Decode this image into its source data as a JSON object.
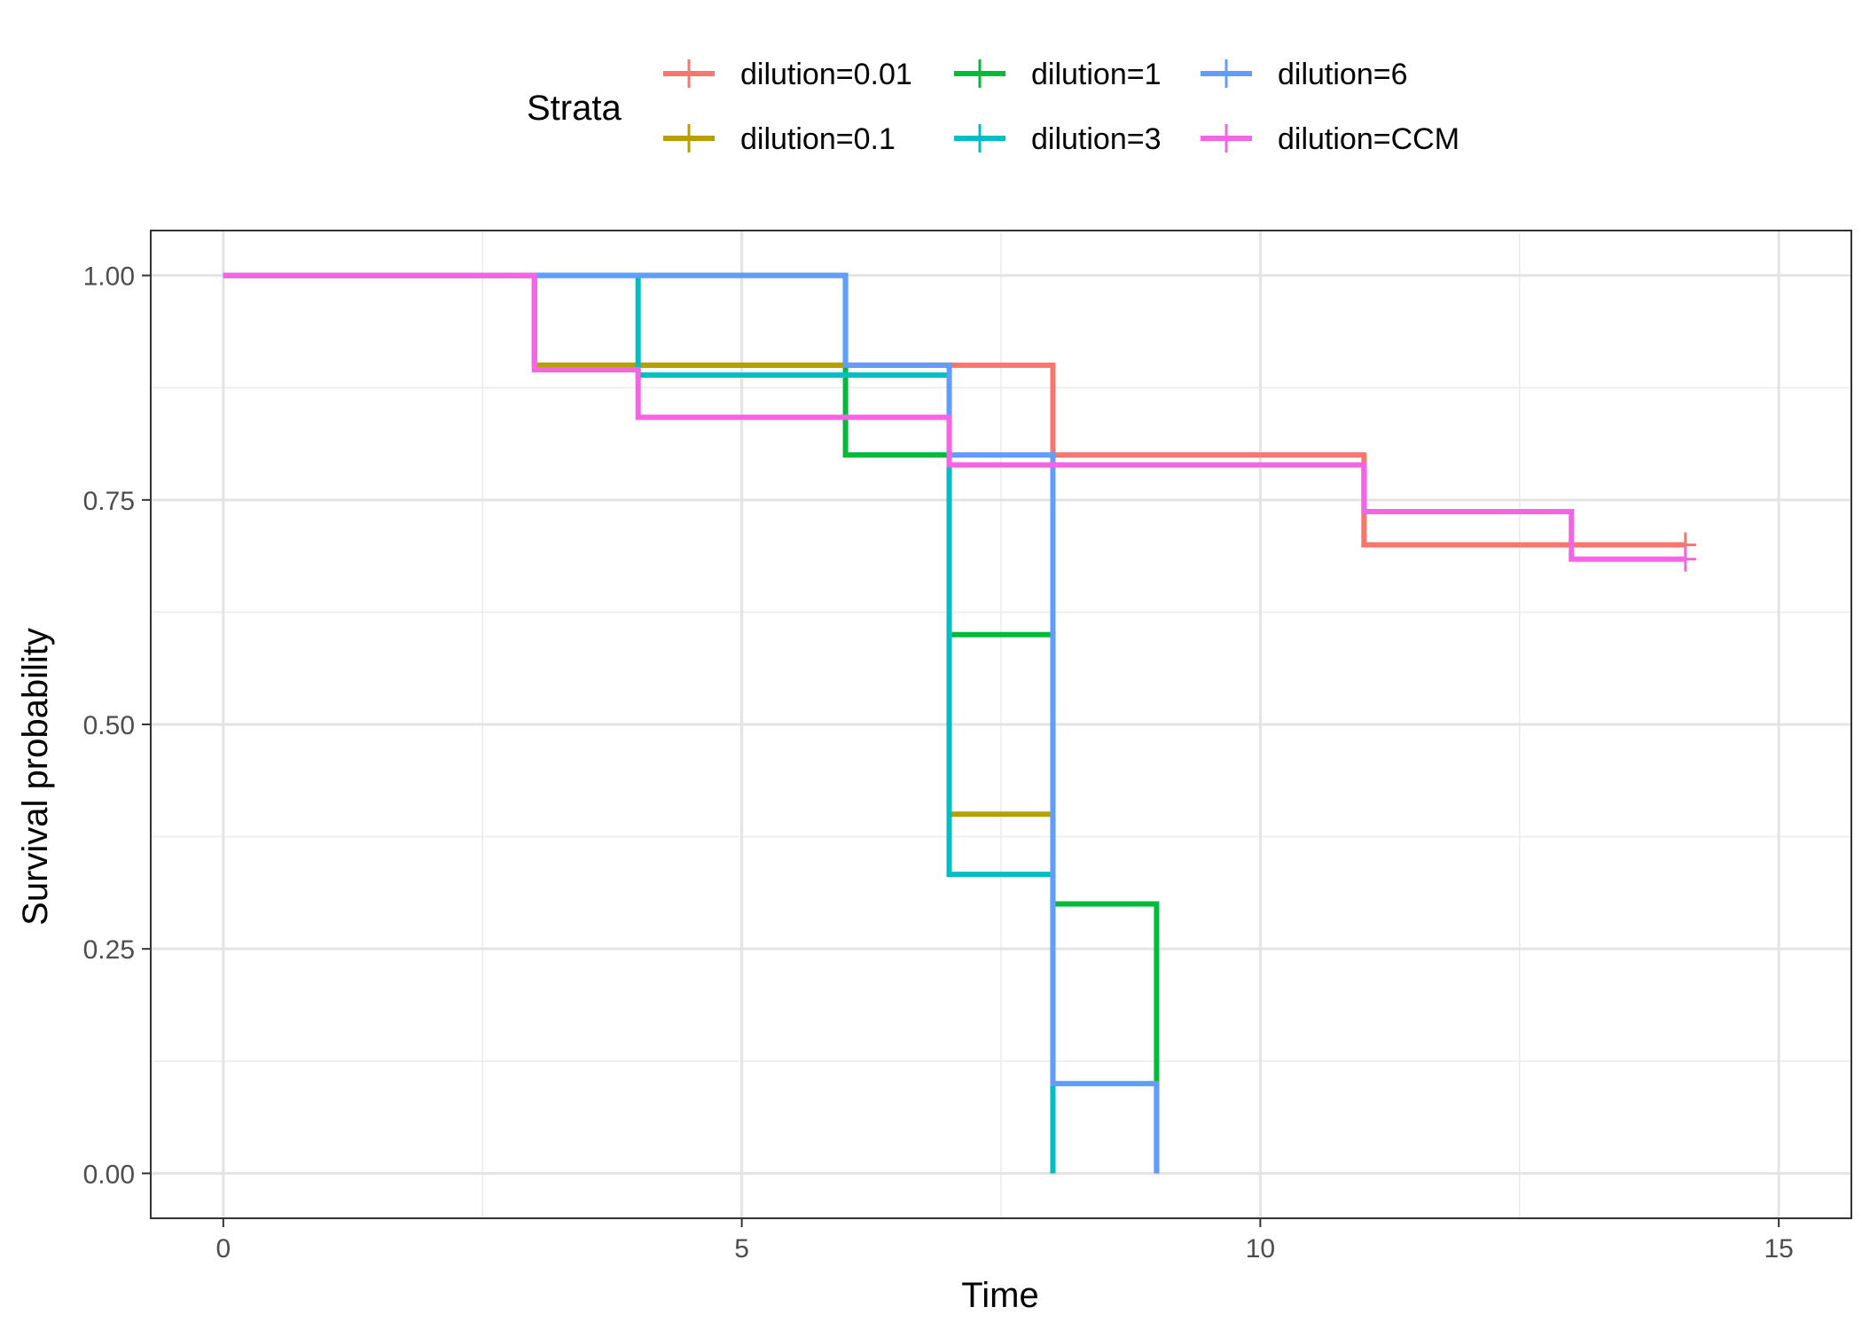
{
  "chart_data": {
    "type": "line",
    "subtype": "kaplan-meier step",
    "xlabel": "Time",
    "ylabel": "Survival probability",
    "xlim": [
      -0.7,
      15.7
    ],
    "ylim": [
      -0.05,
      1.05
    ],
    "x_ticks": [
      0,
      5,
      10,
      15
    ],
    "x_tick_labels": [
      "0",
      "5",
      "10",
      "15"
    ],
    "y_ticks": [
      0,
      0.25,
      0.5,
      0.75,
      1.0
    ],
    "y_tick_labels": [
      "0.00",
      "0.25",
      "0.50",
      "0.75",
      "1.00"
    ],
    "grid": true,
    "legend": {
      "title": "Strata",
      "placement": "top",
      "entries": [
        "dilution=0.01",
        "dilution=0.1",
        "dilution=1",
        "dilution=3",
        "dilution=6",
        "dilution=CCM"
      ]
    },
    "series": [
      {
        "name": "dilution=0.01",
        "color": "#F8766D",
        "steps": [
          [
            0,
            1.0
          ],
          [
            3,
            0.9
          ],
          [
            8,
            0.8
          ],
          [
            11,
            0.7
          ],
          [
            14.1,
            0.7
          ]
        ],
        "censor": [
          [
            14.1,
            0.7
          ]
        ]
      },
      {
        "name": "dilution=0.1",
        "color": "#B79F00",
        "steps": [
          [
            0,
            1.0
          ],
          [
            3,
            0.9
          ],
          [
            7,
            0.4
          ],
          [
            8,
            0.0
          ]
        ],
        "censor": []
      },
      {
        "name": "dilution=1",
        "color": "#00BA38",
        "steps": [
          [
            0,
            1.0
          ],
          [
            6,
            0.8
          ],
          [
            7,
            0.6
          ],
          [
            8,
            0.3
          ],
          [
            9,
            0.0
          ]
        ],
        "censor": []
      },
      {
        "name": "dilution=3",
        "color": "#00BFC4",
        "steps": [
          [
            0,
            1.0
          ],
          [
            4,
            0.889
          ],
          [
            7,
            0.333
          ],
          [
            8,
            0.0
          ]
        ],
        "censor": []
      },
      {
        "name": "dilution=6",
        "color": "#619CFF",
        "steps": [
          [
            0,
            1.0
          ],
          [
            6,
            0.9
          ],
          [
            7,
            0.8
          ],
          [
            8,
            0.1
          ],
          [
            9,
            0.0
          ]
        ],
        "censor": []
      },
      {
        "name": "dilution=CCM",
        "color": "#F564E3",
        "steps": [
          [
            0,
            1.0
          ],
          [
            3,
            0.895
          ],
          [
            4,
            0.842
          ],
          [
            7,
            0.789
          ],
          [
            11,
            0.737
          ],
          [
            13,
            0.684
          ],
          [
            14.1,
            0.684
          ]
        ],
        "censor": [
          [
            14.1,
            0.684
          ]
        ]
      }
    ]
  }
}
